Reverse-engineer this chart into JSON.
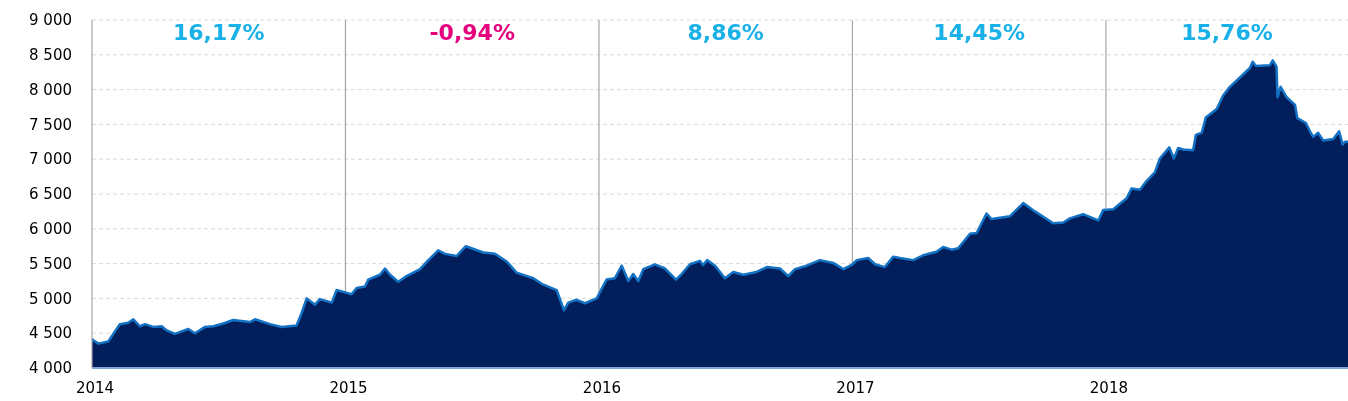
{
  "chart_data": {
    "type": "area",
    "xlim": [
      2014,
      2018.955
    ],
    "ylim": [
      4000,
      9000
    ],
    "xticks": [
      2014,
      2015,
      2016,
      2017,
      2018
    ],
    "yticks": [
      {
        "value": 4000,
        "label": "4 000"
      },
      {
        "value": 4500,
        "label": "4 500"
      },
      {
        "value": 5000,
        "label": "5 000"
      },
      {
        "value": 5500,
        "label": "5 500"
      },
      {
        "value": 6000,
        "label": "6 000"
      },
      {
        "value": 6500,
        "label": "6 500"
      },
      {
        "value": 7000,
        "label": "7 000"
      },
      {
        "value": 7500,
        "label": "7 500"
      },
      {
        "value": 8000,
        "label": "8 000"
      },
      {
        "value": 8500,
        "label": "8 500"
      },
      {
        "value": 9000,
        "label": "9 000"
      }
    ],
    "grid": "y",
    "series": [
      {
        "color": "#021f5c",
        "x": [
          2014.0,
          2014.005,
          2014.025,
          2014.064,
          2014.084,
          2014.11,
          2014.143,
          2014.163,
          2014.189,
          2014.209,
          2014.242,
          2014.275,
          2014.295,
          2014.327,
          2014.38,
          2014.406,
          2014.446,
          2014.479,
          2014.518,
          2014.557,
          2014.623,
          2014.643,
          2014.702,
          2014.748,
          2014.807,
          2014.827,
          2014.847,
          2014.88,
          2014.899,
          2014.946,
          2014.965,
          2015.005,
          2015.024,
          2015.044,
          2015.077,
          2015.09,
          2015.136,
          2015.156,
          2015.176,
          2015.208,
          2015.241,
          2015.294,
          2015.327,
          2015.366,
          2015.393,
          2015.439,
          2015.475,
          2015.544,
          2015.59,
          2015.636,
          2015.675,
          2015.741,
          2015.774,
          2015.833,
          2015.862,
          2015.879,
          2015.912,
          2015.945,
          2015.991,
          2016.03,
          2016.063,
          2016.09,
          2016.116,
          2016.135,
          2016.155,
          2016.175,
          2016.221,
          2016.26,
          2016.304,
          2016.326,
          2016.359,
          2016.398,
          2016.411,
          2016.427,
          2016.458,
          2016.497,
          2016.53,
          2016.569,
          2016.622,
          2016.662,
          2016.714,
          2016.747,
          2016.773,
          2016.819,
          2016.872,
          2016.924,
          2016.964,
          2016.997,
          2017.017,
          2017.062,
          2017.089,
          2017.128,
          2017.161,
          2017.187,
          2017.24,
          2017.279,
          2017.332,
          2017.358,
          2017.391,
          2017.417,
          2017.464,
          2017.49,
          2017.529,
          2017.549,
          2017.621,
          2017.674,
          2017.72,
          2017.792,
          2017.832,
          2017.858,
          2017.91,
          2017.97,
          2017.989,
          2018.029,
          2018.082,
          2018.101,
          2018.134,
          2018.161,
          2018.193,
          2018.213,
          2018.25,
          2018.268,
          2018.285,
          2018.305,
          2018.344,
          2018.355,
          2018.378,
          2018.394,
          2018.437,
          2018.463,
          2018.489,
          2018.568,
          2018.579,
          2018.592,
          2018.647,
          2018.658,
          2018.673,
          2018.677,
          2018.689,
          2018.713,
          2018.746,
          2018.755,
          2018.789,
          2018.808,
          2018.818,
          2018.837,
          2018.857,
          2018.897,
          2018.92,
          2018.934,
          2018.943,
          2018.955
        ],
        "values": [
          4420,
          4400,
          4350,
          4380,
          4490,
          4630,
          4650,
          4700,
          4600,
          4630,
          4590,
          4600,
          4540,
          4490,
          4560,
          4500,
          4590,
          4600,
          4640,
          4690,
          4660,
          4700,
          4630,
          4590,
          4610,
          4790,
          5000,
          4910,
          4990,
          4940,
          5120,
          5080,
          5060,
          5150,
          5170,
          5270,
          5340,
          5430,
          5340,
          5240,
          5320,
          5420,
          5550,
          5690,
          5640,
          5610,
          5750,
          5660,
          5640,
          5530,
          5370,
          5290,
          5210,
          5120,
          4830,
          4940,
          4980,
          4930,
          5000,
          5270,
          5290,
          5470,
          5250,
          5350,
          5250,
          5420,
          5490,
          5430,
          5270,
          5350,
          5490,
          5540,
          5480,
          5550,
          5470,
          5290,
          5380,
          5340,
          5380,
          5450,
          5430,
          5320,
          5420,
          5470,
          5550,
          5510,
          5420,
          5480,
          5550,
          5580,
          5490,
          5450,
          5600,
          5580,
          5550,
          5620,
          5670,
          5740,
          5700,
          5720,
          5930,
          5940,
          6220,
          6140,
          6180,
          6370,
          6250,
          6080,
          6090,
          6150,
          6210,
          6120,
          6270,
          6280,
          6440,
          6580,
          6560,
          6690,
          6810,
          7010,
          7170,
          7010,
          7160,
          7140,
          7130,
          7350,
          7380,
          7600,
          7720,
          7920,
          8040,
          8310,
          8400,
          8340,
          8350,
          8420,
          8330,
          7890,
          8040,
          7890,
          7780,
          7590,
          7520,
          7380,
          7320,
          7380,
          7270,
          7290,
          7400,
          7210,
          7250,
          7250
        ]
      }
    ],
    "ref_lines": [
      {
        "axis": "x",
        "value": 2015,
        "color": "#a6a6a6"
      },
      {
        "axis": "x",
        "value": 2016,
        "color": "#a6a6a6"
      },
      {
        "axis": "x",
        "value": 2017,
        "color": "#a6a6a6"
      },
      {
        "axis": "x",
        "value": 2018,
        "color": "#a6a6a6"
      }
    ],
    "annotations": [
      "16,17%",
      "-0,94%",
      "8,86%",
      "14,45%",
      "15,76%"
    ]
  }
}
